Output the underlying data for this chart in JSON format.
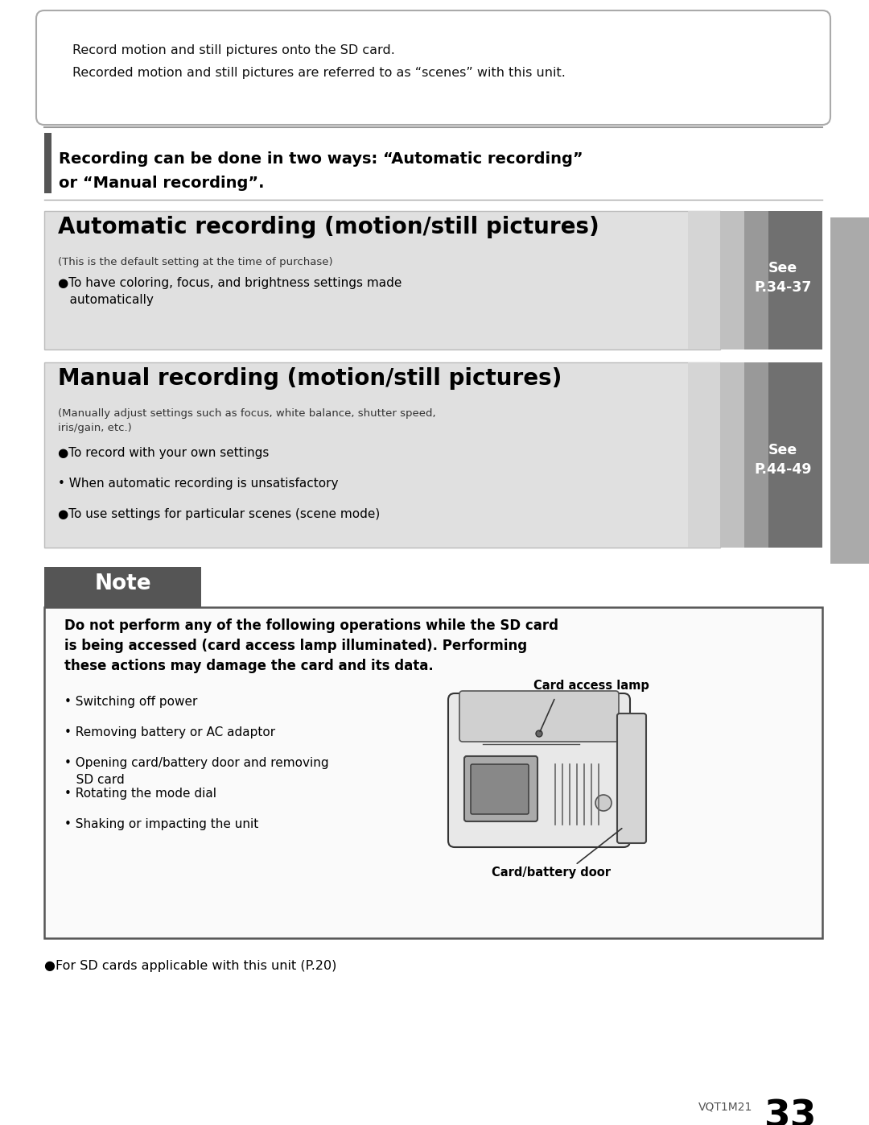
{
  "bg_color": "#ffffff",
  "page_width": 10.8,
  "page_height": 13.97,
  "intro_text1": "Record motion and still pictures onto the SD card.",
  "intro_text2": "Recorded motion and still pictures are referred to as “scenes” with this unit.",
  "section_header_line1": "Recording can be done in two ways: “Automatic recording”",
  "section_header_line2": "or “Manual recording”.",
  "auto_title": "Automatic recording (motion/still pictures)",
  "auto_subtitle": "(This is the default setting at the time of purchase)",
  "auto_bullet": "●To have coloring, focus, and brightness settings made\n   automatically",
  "auto_see": "See\nP.34-37",
  "manual_title": "Manual recording (motion/still pictures)",
  "manual_subtitle": "(Manually adjust settings such as focus, white balance, shutter speed,\niris/gain, etc.)",
  "manual_bullets": [
    "●To record with your own settings",
    "• When automatic recording is unsatisfactory",
    "●To use settings for particular scenes (scene mode)"
  ],
  "manual_see": "See\nP.44-49",
  "note_header": "Note",
  "note_bold": "Do not perform any of the following operations while the SD card\nis being accessed (card access lamp illuminated). Performing\nthese actions may damage the card and its data.",
  "note_bullets": [
    "• Switching off power",
    "• Removing battery or AC adaptor",
    "• Opening card/battery door and removing\n   SD card",
    "• Rotating the mode dial",
    "• Shaking or impacting the unit"
  ],
  "cam_label1": "Card access lamp",
  "cam_label2": "Card/battery door",
  "footer": "●For SD cards applicable with this unit (P.20)",
  "page_num": "33",
  "vqt": "VQT1M21"
}
